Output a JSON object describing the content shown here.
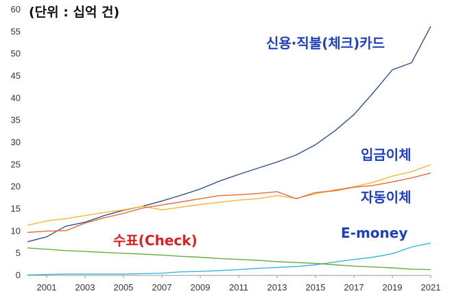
{
  "chart_data": {
    "type": "line",
    "unit_label": "(단위 : 십억 건)",
    "ylim": [
      0,
      60
    ],
    "yticks": [
      0,
      5,
      10,
      15,
      20,
      25,
      30,
      35,
      40,
      45,
      50,
      55,
      60
    ],
    "xlim": [
      2000,
      2021
    ],
    "xticks": [
      2001,
      2003,
      2005,
      2007,
      2009,
      2011,
      2013,
      2015,
      2017,
      2019,
      2021
    ],
    "grid": false,
    "series": [
      {
        "name": "신용·직불(체크)카드",
        "color": "#2e4f8f",
        "label_color": "#1f3fbf",
        "x": [
          2000,
          2001,
          2002,
          2003,
          2004,
          2005,
          2006,
          2007,
          2008,
          2009,
          2010,
          2011,
          2012,
          2013,
          2014,
          2015,
          2016,
          2017,
          2018,
          2019,
          2020,
          2021
        ],
        "values": [
          7.6,
          8.7,
          11.1,
          12.0,
          13.5,
          14.7,
          15.6,
          16.8,
          18.1,
          19.5,
          21.3,
          22.8,
          24.2,
          25.6,
          27.2,
          29.5,
          32.6,
          36.3,
          41.2,
          46.4,
          48.0,
          56.2
        ]
      },
      {
        "name": "입금이체",
        "color": "#f5b730",
        "label_color": "#1f3fbf",
        "x": [
          2000,
          2001,
          2002,
          2003,
          2004,
          2005,
          2006,
          2007,
          2008,
          2009,
          2010,
          2011,
          2012,
          2013,
          2014,
          2015,
          2016,
          2017,
          2018,
          2019,
          2020,
          2021
        ],
        "values": [
          11.3,
          12.3,
          12.8,
          13.5,
          14.2,
          14.8,
          15.6,
          14.8,
          15.4,
          16.0,
          16.5,
          17.0,
          17.3,
          18.0,
          17.4,
          18.4,
          19.3,
          20.0,
          21.0,
          22.4,
          23.4,
          25.0
        ]
      },
      {
        "name": "자동이체",
        "color": "#e8683a",
        "label_color": "#1f3fbf",
        "x": [
          2000,
          2001,
          2002,
          2003,
          2004,
          2005,
          2006,
          2007,
          2008,
          2009,
          2010,
          2011,
          2012,
          2013,
          2014,
          2015,
          2016,
          2017,
          2018,
          2019,
          2020,
          2021
        ],
        "values": [
          9.7,
          10.0,
          10.1,
          11.8,
          13.0,
          14.0,
          15.2,
          15.9,
          16.6,
          17.3,
          18.0,
          18.2,
          18.5,
          18.9,
          17.3,
          18.7,
          19.1,
          19.9,
          20.3,
          21.1,
          22.0,
          23.1
        ]
      },
      {
        "name": "E-money",
        "color": "#35b5dc",
        "label_color": "#1f3fbf",
        "x": [
          2000,
          2001,
          2002,
          2003,
          2004,
          2005,
          2006,
          2007,
          2008,
          2009,
          2010,
          2011,
          2012,
          2013,
          2014,
          2015,
          2016,
          2017,
          2018,
          2019,
          2020,
          2021
        ],
        "values": [
          0.1,
          0.2,
          0.3,
          0.3,
          0.3,
          0.3,
          0.4,
          0.5,
          0.8,
          0.9,
          1.1,
          1.3,
          1.6,
          1.8,
          2.0,
          2.4,
          3.0,
          3.6,
          4.1,
          4.9,
          6.4,
          7.3
        ]
      },
      {
        "name": "수표(Check)",
        "color": "#6aab3d",
        "label_color": "#e02020",
        "x": [
          2000,
          2001,
          2002,
          2003,
          2004,
          2005,
          2006,
          2007,
          2008,
          2009,
          2010,
          2011,
          2012,
          2013,
          2014,
          2015,
          2016,
          2017,
          2018,
          2019,
          2020,
          2021
        ],
        "values": [
          6.2,
          5.9,
          5.6,
          5.4,
          5.2,
          5.0,
          4.8,
          4.6,
          4.3,
          4.1,
          3.8,
          3.6,
          3.4,
          3.1,
          2.9,
          2.7,
          2.4,
          2.1,
          1.9,
          1.7,
          1.4,
          1.3
        ]
      }
    ]
  }
}
